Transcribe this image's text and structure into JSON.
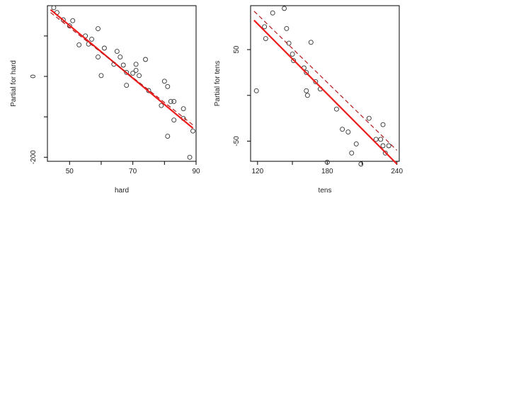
{
  "chart_data": [
    {
      "type": "scatter",
      "title": "",
      "xlabel": "hard",
      "ylabel": "Partial for hard",
      "xlim": [
        43,
        90
      ],
      "ylim": [
        -210,
        175
      ],
      "xticks": [
        50,
        60,
        70,
        80,
        90
      ],
      "xtick_labels": [
        "50",
        "",
        "70",
        "",
        "90"
      ],
      "yticks": [
        -200,
        -100,
        0,
        100
      ],
      "ytick_labels": [
        "-200",
        "",
        "0",
        ""
      ],
      "grid": false,
      "points": [
        {
          "x": 45,
          "y": 170
        },
        {
          "x": 46,
          "y": 158
        },
        {
          "x": 48,
          "y": 140
        },
        {
          "x": 50,
          "y": 125
        },
        {
          "x": 51,
          "y": 138
        },
        {
          "x": 53,
          "y": 78
        },
        {
          "x": 55,
          "y": 100
        },
        {
          "x": 56,
          "y": 80
        },
        {
          "x": 57,
          "y": 92
        },
        {
          "x": 59,
          "y": 118
        },
        {
          "x": 59,
          "y": 48
        },
        {
          "x": 60,
          "y": 2
        },
        {
          "x": 61,
          "y": 70
        },
        {
          "x": 64,
          "y": 30
        },
        {
          "x": 65,
          "y": 62
        },
        {
          "x": 66,
          "y": 48
        },
        {
          "x": 67,
          "y": 28
        },
        {
          "x": 68,
          "y": 10
        },
        {
          "x": 68,
          "y": -22
        },
        {
          "x": 70,
          "y": 8
        },
        {
          "x": 71,
          "y": 30
        },
        {
          "x": 71,
          "y": 15
        },
        {
          "x": 72,
          "y": 2
        },
        {
          "x": 74,
          "y": 42
        },
        {
          "x": 75,
          "y": -35
        },
        {
          "x": 79,
          "y": -72
        },
        {
          "x": 80,
          "y": -12
        },
        {
          "x": 81,
          "y": -25
        },
        {
          "x": 81,
          "y": -148
        },
        {
          "x": 82,
          "y": -62
        },
        {
          "x": 83,
          "y": -62
        },
        {
          "x": 83,
          "y": -108
        },
        {
          "x": 86,
          "y": -80
        },
        {
          "x": 86,
          "y": -104
        },
        {
          "x": 88,
          "y": -200
        },
        {
          "x": 89,
          "y": -135
        }
      ],
      "lines": [
        {
          "style": "solid",
          "color": "#ee1c1c",
          "x": [
            44,
            89
          ],
          "y": [
            165,
            -128
          ]
        },
        {
          "style": "dashed",
          "color": "#b01818",
          "x": [
            44,
            89
          ],
          "y": [
            158,
            -120
          ]
        }
      ]
    },
    {
      "type": "scatter",
      "title": "",
      "xlabel": "tens",
      "ylabel": "Partial for tens",
      "xlim": [
        114,
        242
      ],
      "ylim": [
        -72,
        98
      ],
      "xticks": [
        120,
        150,
        180,
        210,
        240
      ],
      "xtick_labels": [
        "120",
        "",
        "180",
        "",
        "240"
      ],
      "yticks": [
        -50,
        0,
        50
      ],
      "ytick_labels": [
        "-50",
        "",
        "50"
      ],
      "grid": false,
      "points": [
        {
          "x": 119,
          "y": 5
        },
        {
          "x": 126,
          "y": 75
        },
        {
          "x": 127,
          "y": 62
        },
        {
          "x": 133,
          "y": 90
        },
        {
          "x": 143,
          "y": 95
        },
        {
          "x": 145,
          "y": 73
        },
        {
          "x": 147,
          "y": 57
        },
        {
          "x": 150,
          "y": 45
        },
        {
          "x": 151,
          "y": 38
        },
        {
          "x": 160,
          "y": 30
        },
        {
          "x": 162,
          "y": 25
        },
        {
          "x": 162,
          "y": 5
        },
        {
          "x": 163,
          "y": 0
        },
        {
          "x": 166,
          "y": 58
        },
        {
          "x": 170,
          "y": 15
        },
        {
          "x": 174,
          "y": 7
        },
        {
          "x": 180,
          "y": -73
        },
        {
          "x": 188,
          "y": -15
        },
        {
          "x": 193,
          "y": -37
        },
        {
          "x": 198,
          "y": -40
        },
        {
          "x": 201,
          "y": -63
        },
        {
          "x": 205,
          "y": -53
        },
        {
          "x": 209,
          "y": -75
        },
        {
          "x": 216,
          "y": -25
        },
        {
          "x": 222,
          "y": -48
        },
        {
          "x": 226,
          "y": -48
        },
        {
          "x": 228,
          "y": -32
        },
        {
          "x": 228,
          "y": -55
        },
        {
          "x": 230,
          "y": -63
        },
        {
          "x": 233,
          "y": -55
        }
      ],
      "lines": [
        {
          "style": "solid",
          "color": "#ee1c1c",
          "x": [
            117,
            240
          ],
          "y": [
            82,
            -75
          ]
        },
        {
          "style": "dashed",
          "color": "#b01818",
          "x": [
            117,
            240
          ],
          "y": [
            92,
            -60
          ]
        }
      ]
    }
  ]
}
